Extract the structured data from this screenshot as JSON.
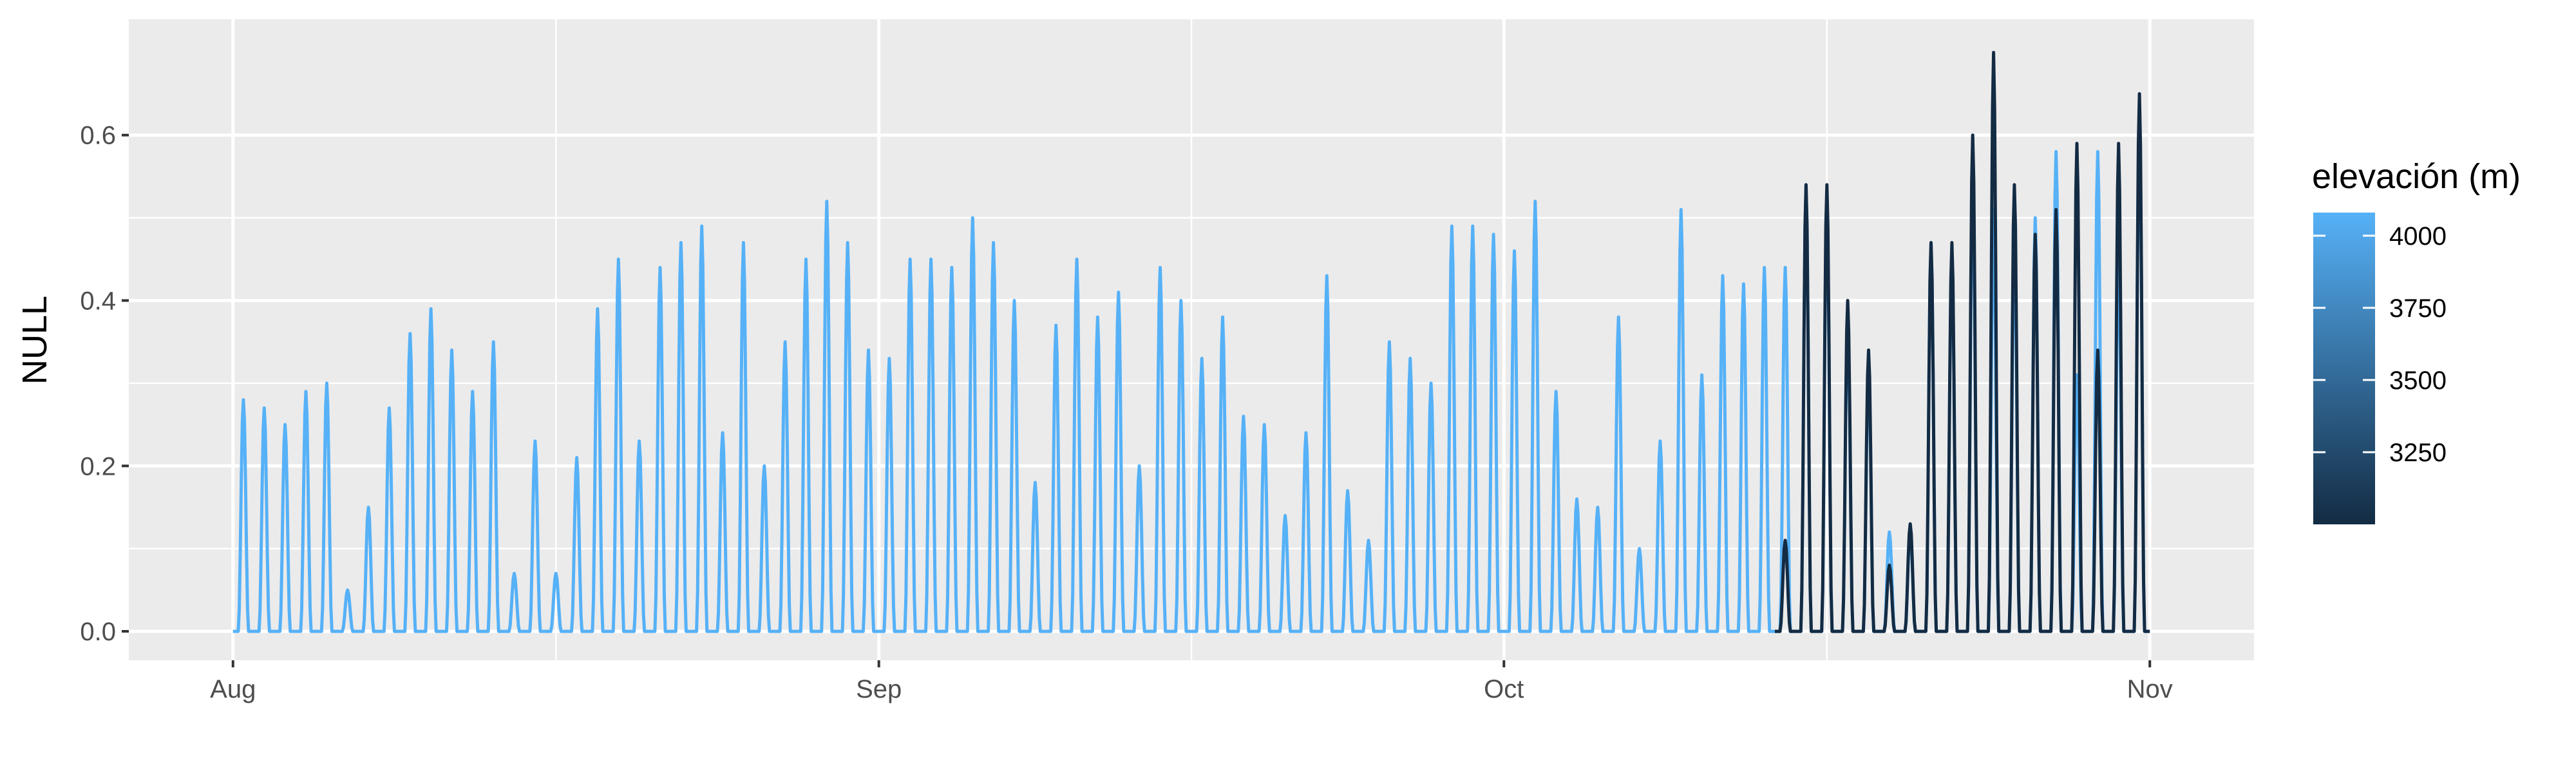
{
  "chart_data": {
    "type": "line",
    "ylabel": "NULL",
    "xlabel": "",
    "x_ticks": [
      {
        "date": "2020-08-01",
        "label": "Aug"
      },
      {
        "date": "2020-09-01",
        "label": "Sep"
      },
      {
        "date": "2020-10-01",
        "label": "Oct"
      },
      {
        "date": "2020-11-01",
        "label": "Nov"
      }
    ],
    "xlim": [
      "2020-07-27",
      "2020-11-06"
    ],
    "y_ticks": [
      0.0,
      0.2,
      0.4,
      0.6
    ],
    "y_tick_labels": [
      "0.0",
      "0.2",
      "0.4",
      "0.6"
    ],
    "ylim": [
      -0.035,
      0.74
    ],
    "grid": true,
    "legend": {
      "title": "elevación (m)",
      "placement": "right",
      "type": "colorbar",
      "range": [
        3000,
        4080
      ],
      "ticks": [
        4000,
        3750,
        3500,
        3250
      ],
      "tick_labels": [
        "4000",
        "3750",
        "3500",
        "3250"
      ],
      "color_low": "#132B43",
      "color_high": "#56B1F7"
    },
    "series": [
      {
        "elevation": 4080,
        "color": "#56B1F7",
        "daily_peak": [
          {
            "date": "2020-08-01",
            "value": 0.28
          },
          {
            "date": "2020-08-02",
            "value": 0.27
          },
          {
            "date": "2020-08-03",
            "value": 0.25
          },
          {
            "date": "2020-08-04",
            "value": 0.29
          },
          {
            "date": "2020-08-05",
            "value": 0.3
          },
          {
            "date": "2020-08-06",
            "value": 0.05
          },
          {
            "date": "2020-08-07",
            "value": 0.15
          },
          {
            "date": "2020-08-08",
            "value": 0.27
          },
          {
            "date": "2020-08-09",
            "value": 0.36
          },
          {
            "date": "2020-08-10",
            "value": 0.39
          },
          {
            "date": "2020-08-11",
            "value": 0.34
          },
          {
            "date": "2020-08-12",
            "value": 0.29
          },
          {
            "date": "2020-08-13",
            "value": 0.35
          },
          {
            "date": "2020-08-14",
            "value": 0.07
          },
          {
            "date": "2020-08-15",
            "value": 0.23
          },
          {
            "date": "2020-08-16",
            "value": 0.07
          },
          {
            "date": "2020-08-17",
            "value": 0.21
          },
          {
            "date": "2020-08-18",
            "value": 0.39
          },
          {
            "date": "2020-08-19",
            "value": 0.45
          },
          {
            "date": "2020-08-20",
            "value": 0.23
          },
          {
            "date": "2020-08-21",
            "value": 0.44
          },
          {
            "date": "2020-08-22",
            "value": 0.47
          },
          {
            "date": "2020-08-23",
            "value": 0.49
          },
          {
            "date": "2020-08-24",
            "value": 0.24
          },
          {
            "date": "2020-08-25",
            "value": 0.47
          },
          {
            "date": "2020-08-26",
            "value": 0.2
          },
          {
            "date": "2020-08-27",
            "value": 0.35
          },
          {
            "date": "2020-08-28",
            "value": 0.45
          },
          {
            "date": "2020-08-29",
            "value": 0.52
          },
          {
            "date": "2020-08-30",
            "value": 0.47
          },
          {
            "date": "2020-08-31",
            "value": 0.34
          },
          {
            "date": "2020-09-01",
            "value": 0.33
          },
          {
            "date": "2020-09-02",
            "value": 0.45
          },
          {
            "date": "2020-09-03",
            "value": 0.45
          },
          {
            "date": "2020-09-04",
            "value": 0.44
          },
          {
            "date": "2020-09-05",
            "value": 0.5
          },
          {
            "date": "2020-09-06",
            "value": 0.47
          },
          {
            "date": "2020-09-07",
            "value": 0.4
          },
          {
            "date": "2020-09-08",
            "value": 0.18
          },
          {
            "date": "2020-09-09",
            "value": 0.37
          },
          {
            "date": "2020-09-10",
            "value": 0.45
          },
          {
            "date": "2020-09-11",
            "value": 0.38
          },
          {
            "date": "2020-09-12",
            "value": 0.41
          },
          {
            "date": "2020-09-13",
            "value": 0.2
          },
          {
            "date": "2020-09-14",
            "value": 0.44
          },
          {
            "date": "2020-09-15",
            "value": 0.4
          },
          {
            "date": "2020-09-16",
            "value": 0.33
          },
          {
            "date": "2020-09-17",
            "value": 0.38
          },
          {
            "date": "2020-09-18",
            "value": 0.26
          },
          {
            "date": "2020-09-19",
            "value": 0.25
          },
          {
            "date": "2020-09-20",
            "value": 0.14
          },
          {
            "date": "2020-09-21",
            "value": 0.24
          },
          {
            "date": "2020-09-22",
            "value": 0.43
          },
          {
            "date": "2020-09-23",
            "value": 0.17
          },
          {
            "date": "2020-09-24",
            "value": 0.11
          },
          {
            "date": "2020-09-25",
            "value": 0.35
          },
          {
            "date": "2020-09-26",
            "value": 0.33
          },
          {
            "date": "2020-09-27",
            "value": 0.3
          },
          {
            "date": "2020-09-28",
            "value": 0.49
          },
          {
            "date": "2020-09-29",
            "value": 0.49
          },
          {
            "date": "2020-09-30",
            "value": 0.48
          },
          {
            "date": "2020-10-01",
            "value": 0.46
          },
          {
            "date": "2020-10-02",
            "value": 0.52
          },
          {
            "date": "2020-10-03",
            "value": 0.29
          },
          {
            "date": "2020-10-04",
            "value": 0.16
          },
          {
            "date": "2020-10-05",
            "value": 0.15
          },
          {
            "date": "2020-10-06",
            "value": 0.38
          },
          {
            "date": "2020-10-07",
            "value": 0.1
          },
          {
            "date": "2020-10-08",
            "value": 0.23
          },
          {
            "date": "2020-10-09",
            "value": 0.51
          },
          {
            "date": "2020-10-10",
            "value": 0.31
          },
          {
            "date": "2020-10-11",
            "value": 0.43
          },
          {
            "date": "2020-10-12",
            "value": 0.42
          },
          {
            "date": "2020-10-13",
            "value": 0.44
          },
          {
            "date": "2020-10-14",
            "value": 0.44
          },
          {
            "date": "2020-10-15",
            "value": 0.54
          },
          {
            "date": "2020-10-16",
            "value": 0.52
          },
          {
            "date": "2020-10-17",
            "value": 0.38
          },
          {
            "date": "2020-10-18",
            "value": 0.32
          },
          {
            "date": "2020-10-19",
            "value": 0.12
          },
          {
            "date": "2020-10-20",
            "value": 0.12
          },
          {
            "date": "2020-10-21",
            "value": 0.47
          },
          {
            "date": "2020-10-22",
            "value": 0.46
          },
          {
            "date": "2020-10-23",
            "value": 0.55
          },
          {
            "date": "2020-10-24",
            "value": 0.51
          },
          {
            "date": "2020-10-25",
            "value": 0.48
          },
          {
            "date": "2020-10-26",
            "value": 0.5
          },
          {
            "date": "2020-10-27",
            "value": 0.58
          },
          {
            "date": "2020-10-28",
            "value": 0.31
          },
          {
            "date": "2020-10-29",
            "value": 0.58
          },
          {
            "date": "2020-10-30",
            "value": 0.47
          },
          {
            "date": "2020-10-31",
            "value": 0.63
          }
        ]
      },
      {
        "elevation": 3000,
        "color": "#132B43",
        "daily_peak": [
          {
            "date": "2020-10-14",
            "value": 0.11
          },
          {
            "date": "2020-10-15",
            "value": 0.54
          },
          {
            "date": "2020-10-16",
            "value": 0.54
          },
          {
            "date": "2020-10-17",
            "value": 0.4
          },
          {
            "date": "2020-10-18",
            "value": 0.34
          },
          {
            "date": "2020-10-19",
            "value": 0.08
          },
          {
            "date": "2020-10-20",
            "value": 0.13
          },
          {
            "date": "2020-10-21",
            "value": 0.47
          },
          {
            "date": "2020-10-22",
            "value": 0.47
          },
          {
            "date": "2020-10-23",
            "value": 0.6
          },
          {
            "date": "2020-10-24",
            "value": 0.7
          },
          {
            "date": "2020-10-25",
            "value": 0.54
          },
          {
            "date": "2020-10-26",
            "value": 0.48
          },
          {
            "date": "2020-10-27",
            "value": 0.51
          },
          {
            "date": "2020-10-28",
            "value": 0.59
          },
          {
            "date": "2020-10-29",
            "value": 0.34
          },
          {
            "date": "2020-10-30",
            "value": 0.59
          },
          {
            "date": "2020-10-31",
            "value": 0.65
          }
        ]
      }
    ]
  }
}
